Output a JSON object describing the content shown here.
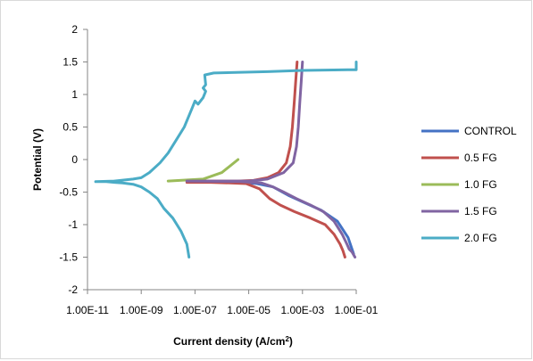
{
  "chart_data": {
    "type": "line",
    "title": "",
    "xlabel": "Current density (A/cm",
    "xlabel_sup": "2",
    "xlabel_end": ")",
    "ylabel": "Potential (V)",
    "x_scale": "log",
    "xlim": [
      1e-11,
      0.1
    ],
    "ylim": [
      -2,
      2
    ],
    "x_tick_labels": [
      "1.00E-11",
      "1.00E-09",
      "1.00E-07",
      "1.00E-05",
      "1.00E-03",
      "1.00E-01"
    ],
    "y_tick_labels": [
      "2",
      "1.5",
      "1",
      "0.5",
      "0",
      "-0.5",
      "-1",
      "-1.5",
      "-2"
    ],
    "grid": false,
    "legend_position": "right",
    "series": [
      {
        "name": "CONTROL",
        "color": "#4472C4",
        "points": [
          [
            5e-08,
            -0.33
          ],
          [
            1e-06,
            -0.34
          ],
          [
            6e-06,
            -0.35
          ],
          [
            2e-05,
            -0.37
          ],
          [
            8e-05,
            -0.42
          ],
          [
            0.0003,
            -0.55
          ],
          [
            0.001,
            -0.65
          ],
          [
            0.005,
            -0.78
          ],
          [
            0.02,
            -0.95
          ],
          [
            0.05,
            -1.2
          ],
          [
            0.08,
            -1.45
          ]
        ]
      },
      {
        "name": "0.5 FG",
        "color": "#C0504D",
        "points": [
          [
            5e-08,
            -0.35
          ],
          [
            4e-07,
            -0.35
          ],
          [
            2e-06,
            -0.36
          ],
          [
            8e-06,
            -0.37
          ],
          [
            2.5e-05,
            -0.45
          ],
          [
            6e-05,
            -0.6
          ],
          [
            0.00015,
            -0.7
          ],
          [
            0.0005,
            -0.8
          ],
          [
            0.002,
            -0.9
          ],
          [
            0.007,
            -1.0
          ],
          [
            0.015,
            -1.15
          ],
          [
            0.025,
            -1.3
          ],
          [
            0.032,
            -1.4
          ],
          [
            0.038,
            -1.5
          ],
          null,
          [
            5e-08,
            -0.33
          ],
          [
            4e-06,
            -0.33
          ],
          [
            1.5e-05,
            -0.32
          ],
          [
            5e-05,
            -0.28
          ],
          [
            0.00013,
            -0.2
          ],
          [
            0.00025,
            -0.05
          ],
          [
            0.00035,
            0.2
          ],
          [
            0.00042,
            0.5
          ],
          [
            0.0005,
            0.9
          ],
          [
            0.00056,
            1.2
          ],
          [
            0.00063,
            1.5
          ]
        ]
      },
      {
        "name": "1.0 FG",
        "color": "#9BBB59",
        "points": [
          [
            1e-08,
            -0.33
          ],
          [
            2e-07,
            -0.3
          ],
          [
            1e-06,
            -0.2
          ],
          [
            4e-06,
            0.0
          ]
        ]
      },
      {
        "name": "1.5 FG",
        "color": "#8064A2",
        "points": [
          [
            5e-08,
            -0.33
          ],
          [
            5e-06,
            -0.34
          ],
          [
            3e-05,
            -0.36
          ],
          [
            8e-05,
            -0.42
          ],
          [
            0.0002,
            -0.5
          ],
          [
            0.0006,
            -0.6
          ],
          [
            0.002,
            -0.7
          ],
          [
            0.006,
            -0.8
          ],
          [
            0.015,
            -0.95
          ],
          [
            0.03,
            -1.15
          ],
          [
            0.045,
            -1.3
          ],
          [
            0.055,
            -1.38
          ],
          [
            0.07,
            -1.42
          ],
          [
            0.09,
            -1.5
          ],
          null,
          [
            5e-08,
            -0.33
          ],
          [
            1e-05,
            -0.33
          ],
          [
            5e-05,
            -0.3
          ],
          [
            0.0002,
            -0.2
          ],
          [
            0.00045,
            -0.05
          ],
          [
            0.0006,
            0.2
          ],
          [
            0.0007,
            0.5
          ],
          [
            0.0008,
            0.9
          ],
          [
            0.0009,
            1.2
          ],
          [
            0.001,
            1.5
          ]
        ]
      },
      {
        "name": "2.0 FG",
        "color": "#4BACC6",
        "points": [
          [
            2e-11,
            -0.34
          ],
          [
            5e-11,
            -0.34
          ],
          [
            1e-10,
            -0.35
          ],
          [
            2e-10,
            -0.36
          ],
          [
            5e-10,
            -0.38
          ],
          [
            1e-09,
            -0.42
          ],
          [
            2e-09,
            -0.5
          ],
          [
            4e-09,
            -0.6
          ],
          [
            7e-09,
            -0.75
          ],
          [
            1.5e-08,
            -0.9
          ],
          [
            3e-08,
            -1.1
          ],
          [
            5e-08,
            -1.3
          ],
          [
            6e-08,
            -1.5
          ],
          null,
          [
            2e-11,
            -0.34
          ],
          [
            1e-10,
            -0.33
          ],
          [
            5e-10,
            -0.3
          ],
          [
            1e-09,
            -0.28
          ],
          [
            2e-09,
            -0.2
          ],
          [
            5e-09,
            -0.05
          ],
          [
            1e-08,
            0.1
          ],
          [
            2e-08,
            0.3
          ],
          [
            4e-08,
            0.5
          ],
          [
            8e-08,
            0.8
          ],
          [
            1e-07,
            0.9
          ],
          [
            1.3e-07,
            0.85
          ],
          [
            2e-07,
            0.95
          ],
          [
            2.5e-07,
            1.05
          ],
          [
            2e-07,
            1.1
          ],
          [
            2.5e-07,
            1.15
          ],
          [
            2.3e-07,
            1.3
          ],
          [
            5e-07,
            1.33
          ],
          [
            5e-05,
            1.35
          ],
          [
            0.001,
            1.37
          ],
          [
            0.05,
            1.38
          ],
          [
            0.1,
            1.38
          ],
          [
            0.1,
            1.5
          ]
        ]
      }
    ]
  }
}
